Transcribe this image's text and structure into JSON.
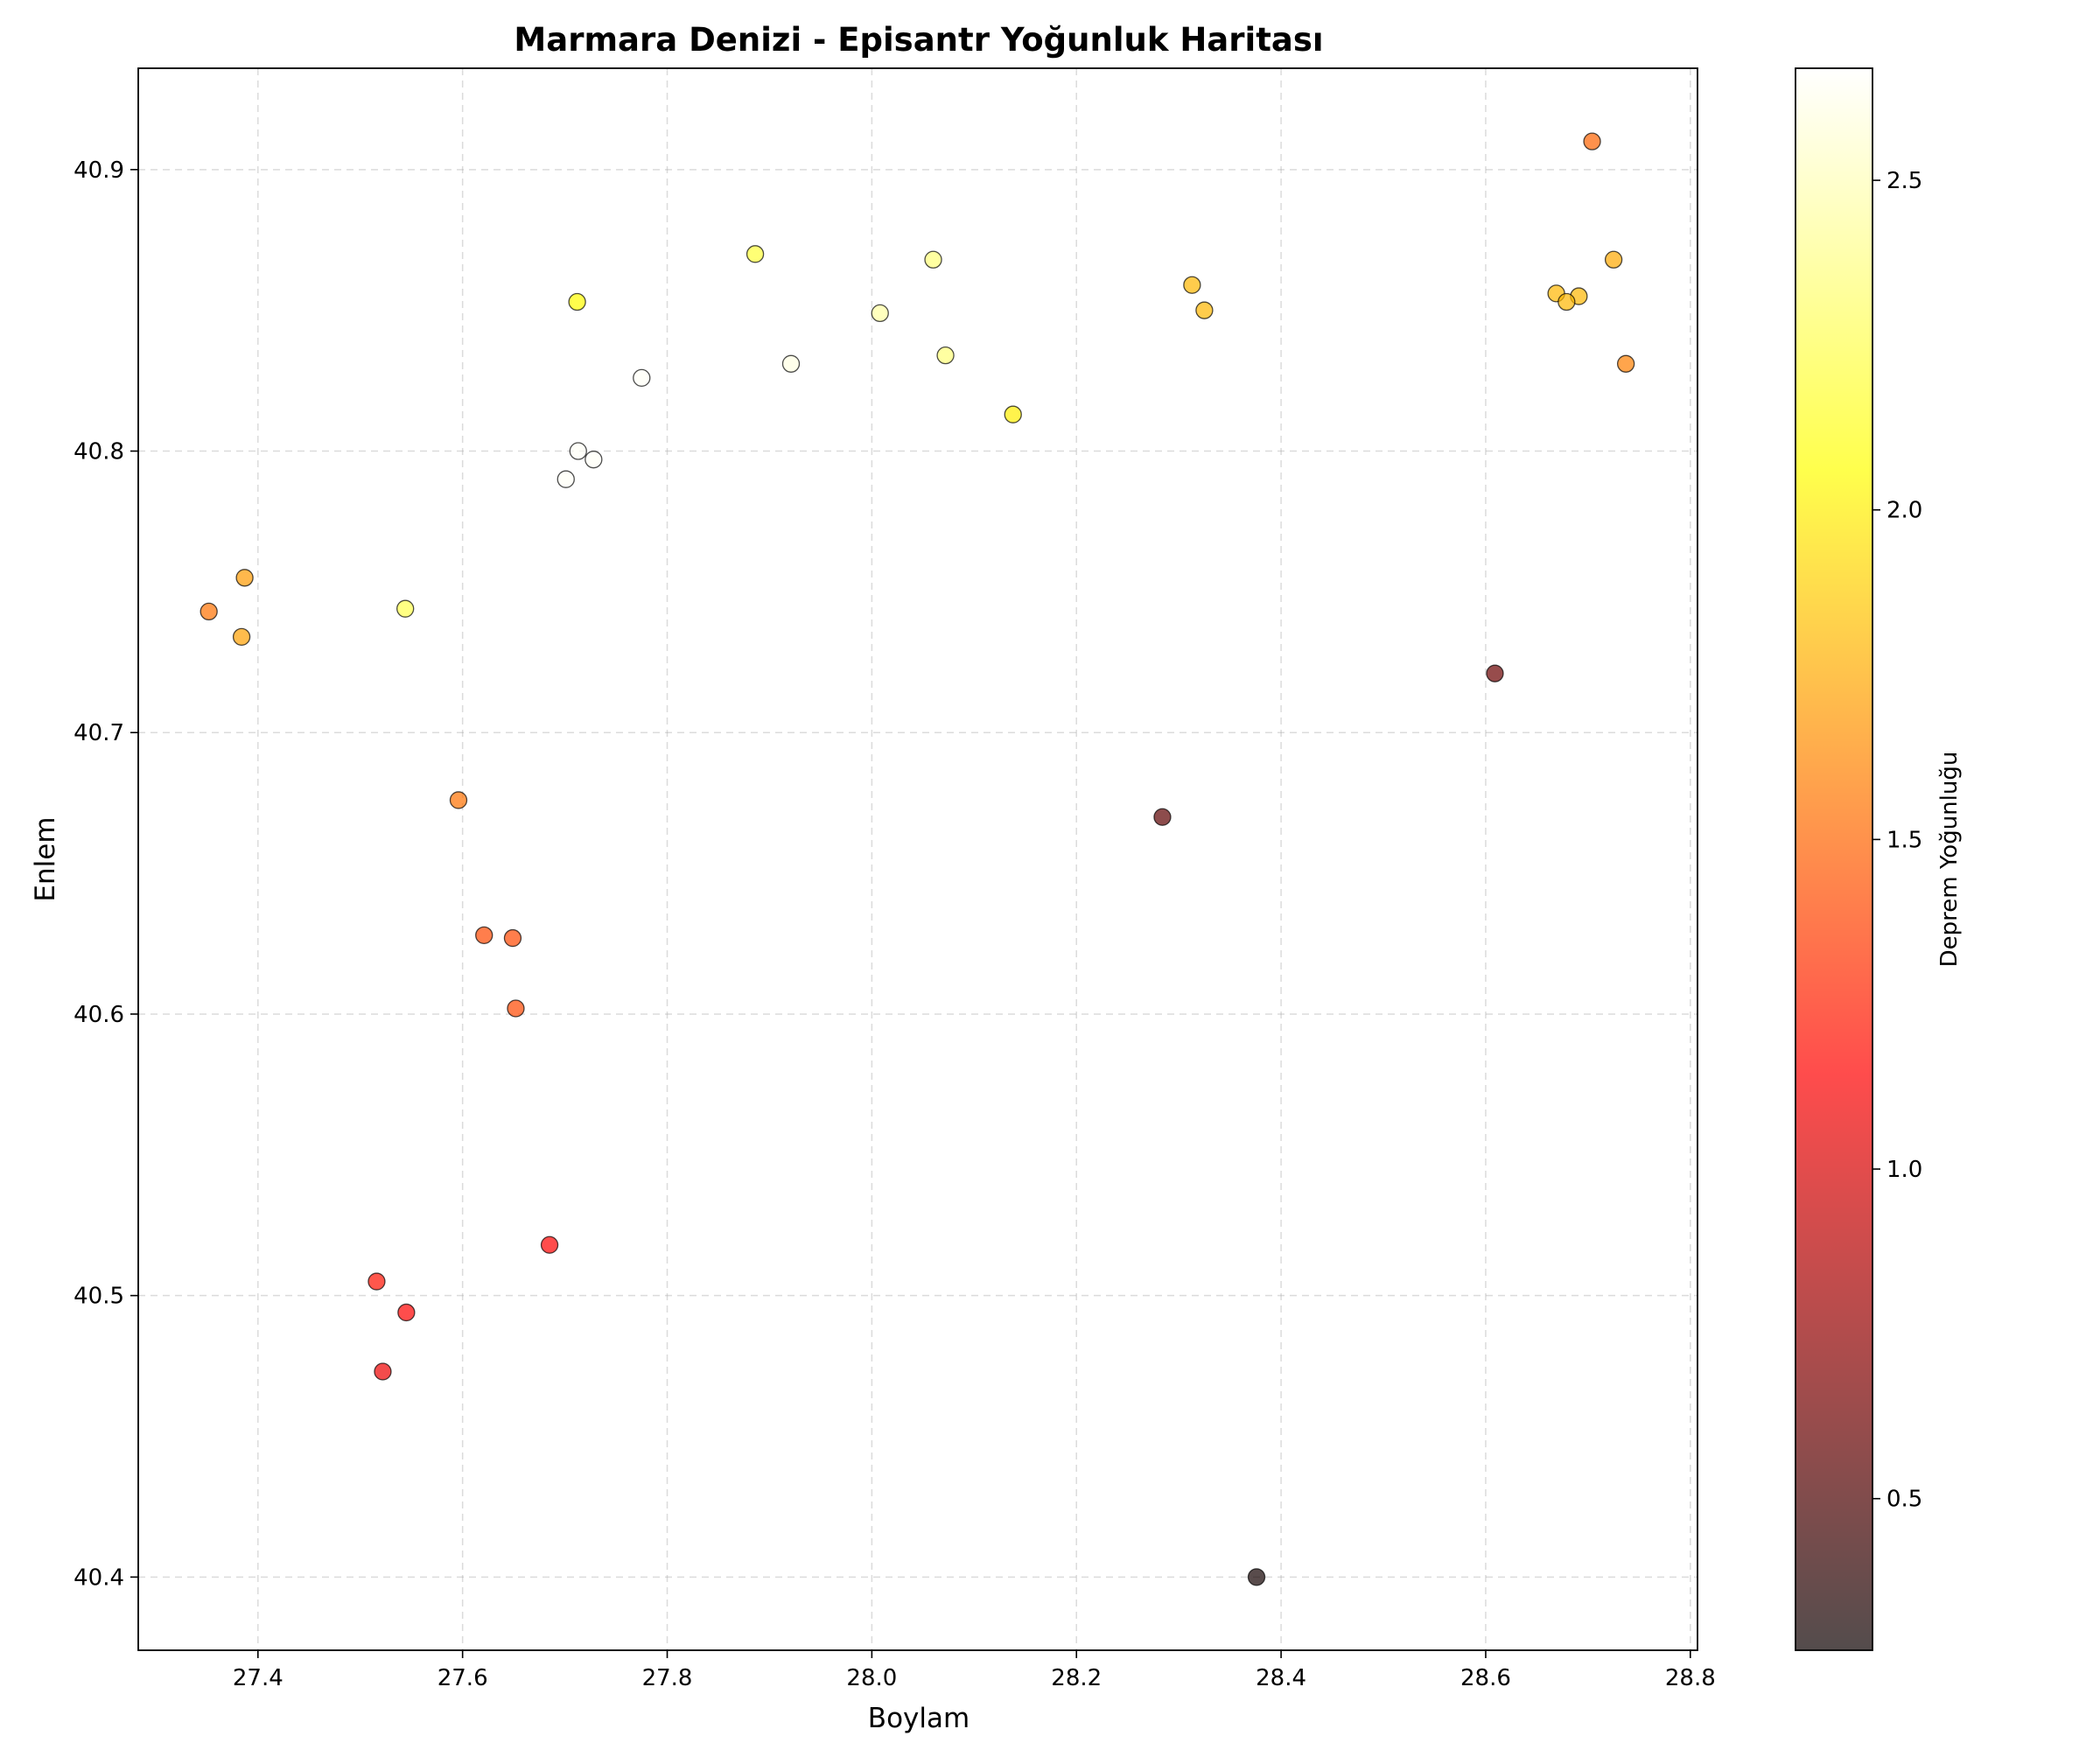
{
  "chart_data": {
    "type": "scatter",
    "title": "Marmara Denizi - Episantr Yoğunluk Haritası",
    "xlabel": "Boylam",
    "ylabel": "Enlem",
    "xlim": [
      27.283,
      28.807
    ],
    "ylim": [
      40.374,
      40.936
    ],
    "xticks": [
      27.4,
      27.6,
      27.8,
      28.0,
      28.2,
      28.4,
      28.6,
      28.8
    ],
    "yticks": [
      40.4,
      40.5,
      40.6,
      40.7,
      40.8,
      40.9
    ],
    "grid": true,
    "colorbar": {
      "label": "Deprem Yoğunluğu",
      "range": [
        0.27,
        2.67
      ],
      "ticks": [
        0.5,
        1.0,
        1.5,
        2.0,
        2.5
      ],
      "colormap": "hot",
      "alpha": 0.7
    },
    "points": [
      {
        "x": 27.352,
        "y": 40.743,
        "c": 1.55
      },
      {
        "x": 27.387,
        "y": 40.755,
        "c": 1.7
      },
      {
        "x": 27.384,
        "y": 40.734,
        "c": 1.72
      },
      {
        "x": 27.544,
        "y": 40.744,
        "c": 2.25
      },
      {
        "x": 27.596,
        "y": 40.676,
        "c": 1.55
      },
      {
        "x": 27.621,
        "y": 40.628,
        "c": 1.4
      },
      {
        "x": 27.649,
        "y": 40.627,
        "c": 1.4
      },
      {
        "x": 27.652,
        "y": 40.602,
        "c": 1.4
      },
      {
        "x": 27.516,
        "y": 40.505,
        "c": 1.2
      },
      {
        "x": 27.545,
        "y": 40.494,
        "c": 1.15
      },
      {
        "x": 27.522,
        "y": 40.473,
        "c": 1.05
      },
      {
        "x": 27.685,
        "y": 40.518,
        "c": 1.15
      },
      {
        "x": 27.712,
        "y": 40.853,
        "c": 2.05
      },
      {
        "x": 27.775,
        "y": 40.826,
        "c": 2.65
      },
      {
        "x": 27.713,
        "y": 40.8,
        "c": 2.65
      },
      {
        "x": 27.728,
        "y": 40.797,
        "c": 2.65
      },
      {
        "x": 27.701,
        "y": 40.79,
        "c": 2.65
      },
      {
        "x": 27.886,
        "y": 40.87,
        "c": 2.2
      },
      {
        "x": 27.921,
        "y": 40.831,
        "c": 2.6
      },
      {
        "x": 28.008,
        "y": 40.849,
        "c": 2.45
      },
      {
        "x": 28.06,
        "y": 40.868,
        "c": 2.35
      },
      {
        "x": 28.072,
        "y": 40.834,
        "c": 2.35
      },
      {
        "x": 28.138,
        "y": 40.813,
        "c": 2.0
      },
      {
        "x": 28.313,
        "y": 40.859,
        "c": 1.8
      },
      {
        "x": 28.325,
        "y": 40.85,
        "c": 1.8
      },
      {
        "x": 28.284,
        "y": 40.67,
        "c": 0.55
      },
      {
        "x": 28.376,
        "y": 40.4,
        "c": 0.3
      },
      {
        "x": 28.609,
        "y": 40.721,
        "c": 0.6
      },
      {
        "x": 28.704,
        "y": 40.91,
        "c": 1.5
      },
      {
        "x": 28.669,
        "y": 40.856,
        "c": 1.8
      },
      {
        "x": 28.691,
        "y": 40.855,
        "c": 1.8
      },
      {
        "x": 28.679,
        "y": 40.853,
        "c": 1.8
      },
      {
        "x": 28.725,
        "y": 40.868,
        "c": 1.75
      },
      {
        "x": 28.737,
        "y": 40.831,
        "c": 1.6
      }
    ]
  }
}
